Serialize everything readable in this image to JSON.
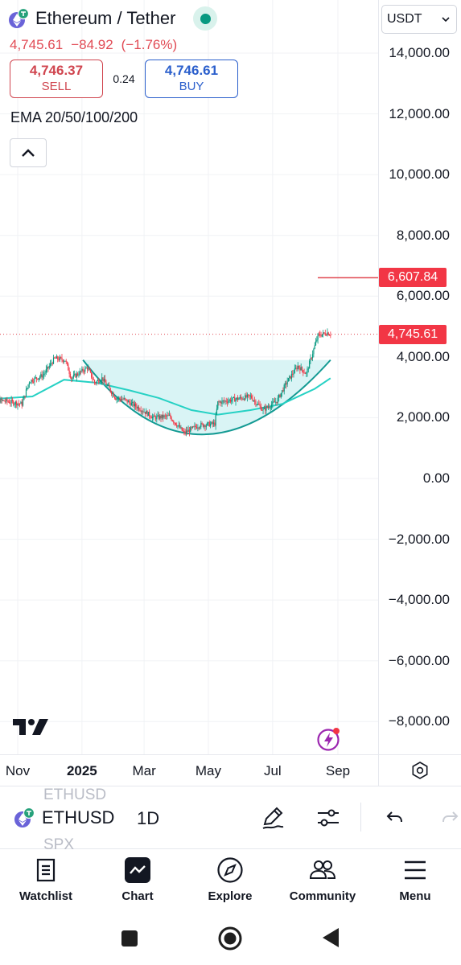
{
  "header": {
    "symbol_title": "Ethereum / Tether",
    "last_price": "4,745.61",
    "change": "−84.92",
    "change_pct": "(−1.76%)",
    "sell": {
      "price": "4,746.37",
      "label": "SELL"
    },
    "spread": "0.24",
    "buy": {
      "price": "4,746.61",
      "label": "BUY"
    },
    "indicator": "EMA 20/50/100/200"
  },
  "currency": {
    "selected": "USDT"
  },
  "price_axis": {
    "ticks": [
      "14,000.00",
      "12,000.00",
      "10,000.00",
      "8,000.00",
      "6,000.00",
      "4,000.00",
      "2,000.00",
      "0.00",
      "−2,000.00",
      "−4,000.00",
      "−6,000.00",
      "−8,000.00"
    ],
    "target_tag": "6,607.84",
    "last_tag": "4,745.61"
  },
  "time_axis": {
    "labels": [
      "Nov",
      "2025",
      "Mar",
      "May",
      "Jul",
      "Sep"
    ]
  },
  "toolbar": {
    "ghost_top": "ETHUSD",
    "symbol": "ETHUSD",
    "ghost_bottom": "SPX",
    "interval": "1D"
  },
  "nav": {
    "items": [
      "Watchlist",
      "Chart",
      "Explore",
      "Community",
      "Menu"
    ]
  },
  "colors": {
    "accent_red": "#f23645",
    "ema_line": "#26d1c4",
    "cup_line": "#139a93",
    "cup_fill": "#d9f4f5"
  },
  "chart_data": {
    "type": "candlestick",
    "xlabel": "",
    "ylabel": "",
    "ylim": [
      -9000,
      15000
    ],
    "x_ticks": [
      "Nov",
      "2025",
      "Mar",
      "May",
      "Jul",
      "Sep"
    ],
    "y_ticks": [
      14000,
      12000,
      10000,
      8000,
      6000,
      4000,
      2000,
      0,
      -2000,
      -4000,
      -6000,
      -8000
    ],
    "last_price": 4745.61,
    "target_level": 6607.84,
    "close_path": [
      {
        "x": "2024-10-01",
        "y": 2600
      },
      {
        "x": "2024-10-20",
        "y": 2550
      },
      {
        "x": "2024-11-05",
        "y": 2450
      },
      {
        "x": "2024-11-12",
        "y": 3200
      },
      {
        "x": "2024-11-25",
        "y": 3400
      },
      {
        "x": "2024-12-06",
        "y": 3950
      },
      {
        "x": "2024-12-16",
        "y": 3900
      },
      {
        "x": "2024-12-22",
        "y": 3300
      },
      {
        "x": "2025-01-06",
        "y": 3650
      },
      {
        "x": "2025-01-13",
        "y": 3150
      },
      {
        "x": "2025-01-20",
        "y": 3300
      },
      {
        "x": "2025-02-02",
        "y": 2650
      },
      {
        "x": "2025-02-10",
        "y": 2600
      },
      {
        "x": "2025-02-25",
        "y": 2300
      },
      {
        "x": "2025-03-10",
        "y": 2000
      },
      {
        "x": "2025-03-25",
        "y": 2050
      },
      {
        "x": "2025-04-08",
        "y": 1500
      },
      {
        "x": "2025-04-22",
        "y": 1750
      },
      {
        "x": "2025-05-07",
        "y": 1800
      },
      {
        "x": "2025-05-10",
        "y": 2500
      },
      {
        "x": "2025-05-25",
        "y": 2600
      },
      {
        "x": "2025-06-10",
        "y": 2700
      },
      {
        "x": "2025-06-22",
        "y": 2250
      },
      {
        "x": "2025-07-05",
        "y": 2550
      },
      {
        "x": "2025-07-15",
        "y": 3200
      },
      {
        "x": "2025-07-25",
        "y": 3700
      },
      {
        "x": "2025-08-02",
        "y": 3450
      },
      {
        "x": "2025-08-13",
        "y": 4700
      },
      {
        "x": "2025-08-22",
        "y": 4800
      },
      {
        "x": "2025-08-25",
        "y": 4745
      }
    ],
    "ema": [
      {
        "x": "2024-10-01",
        "y": 2600
      },
      {
        "x": "2024-11-15",
        "y": 2700
      },
      {
        "x": "2024-12-15",
        "y": 3250
      },
      {
        "x": "2025-01-15",
        "y": 3150
      },
      {
        "x": "2025-02-15",
        "y": 2900
      },
      {
        "x": "2025-03-15",
        "y": 2650
      },
      {
        "x": "2025-04-15",
        "y": 2250
      },
      {
        "x": "2025-05-10",
        "y": 2100
      },
      {
        "x": "2025-06-10",
        "y": 2250
      },
      {
        "x": "2025-07-10",
        "y": 2450
      },
      {
        "x": "2025-08-10",
        "y": 2950
      },
      {
        "x": "2025-08-25",
        "y": 3300
      }
    ],
    "cup": {
      "start": {
        "x": "2025-01-02",
        "y": 3900
      },
      "bottom": {
        "x": "2025-04-25",
        "y": 1450
      },
      "end": {
        "x": "2025-08-25",
        "y": 3900
      }
    }
  }
}
